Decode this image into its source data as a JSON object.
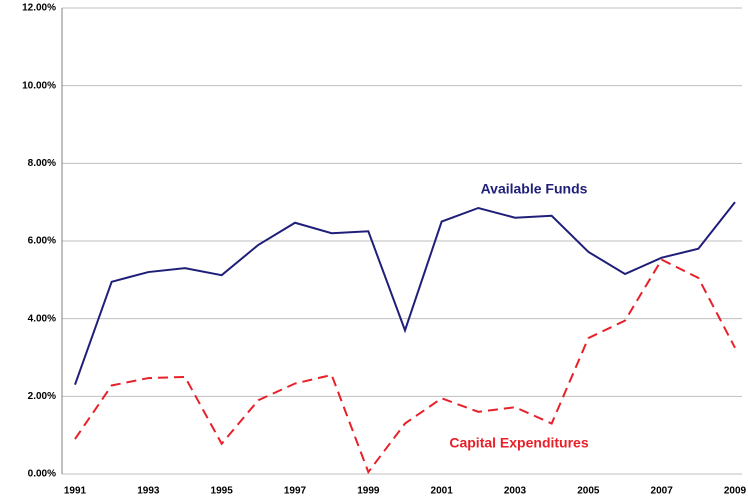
{
  "chart_data": {
    "type": "line",
    "categories": [
      "1991",
      null,
      "1993",
      null,
      "1995",
      null,
      "1997",
      null,
      "1999",
      null,
      "2001",
      null,
      "2003",
      null,
      "2005",
      null,
      "2007",
      null,
      "2009"
    ],
    "series": [
      {
        "name": "Available Funds",
        "color": "#1f1f7a",
        "dashed": false,
        "values": [
          2.3,
          4.95,
          5.2,
          5.3,
          5.12,
          5.9,
          6.47,
          6.2,
          6.25,
          3.7,
          6.5,
          6.85,
          6.6,
          6.65,
          5.72,
          5.15,
          5.57,
          5.8,
          7.0
        ]
      },
      {
        "name": "Capital Expenditures",
        "color": "#e8202a",
        "dashed": true,
        "values": [
          0.9,
          2.28,
          2.47,
          2.5,
          0.78,
          1.9,
          2.33,
          2.55,
          0.05,
          1.3,
          1.95,
          1.6,
          1.72,
          1.3,
          3.5,
          3.95,
          5.52,
          5.05,
          3.25
        ]
      }
    ],
    "ylim": [
      0,
      12
    ],
    "yticks": [
      {
        "value": 0,
        "label": "0.00%"
      },
      {
        "value": 2,
        "label": "2.00%"
      },
      {
        "value": 4,
        "label": "4.00%"
      },
      {
        "value": 6,
        "label": "6.00%"
      },
      {
        "value": 8,
        "label": "8.00%"
      },
      {
        "value": 10,
        "label": "10.00%"
      },
      {
        "value": 12,
        "label": "12.00%"
      }
    ],
    "grid": true
  }
}
